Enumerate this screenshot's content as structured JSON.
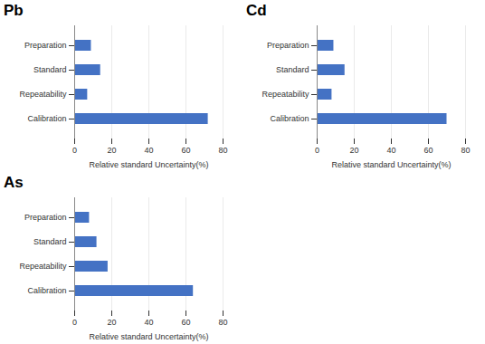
{
  "chart_data": [
    {
      "type": "bar",
      "title": "Pb",
      "orientation": "horizontal",
      "categories": [
        "Preparation",
        "Standard",
        "Repeatability",
        "Calibration"
      ],
      "values": [
        9,
        14,
        7,
        72
      ],
      "color": "#4472c4",
      "xlim": [
        0,
        80
      ],
      "xticks": [
        0,
        20,
        40,
        60,
        80
      ],
      "grid": true,
      "xlabel": "Relative standard Uncertainty(%)"
    },
    {
      "type": "bar",
      "title": "Cd",
      "orientation": "horizontal",
      "categories": [
        "Preparation",
        "Standard",
        "Repeatability",
        "Calibration"
      ],
      "values": [
        9,
        15,
        8,
        70
      ],
      "color": "#4472c4",
      "xlim": [
        0,
        80
      ],
      "xticks": [
        0,
        20,
        40,
        60,
        80
      ],
      "grid": true,
      "xlabel": "Relative standard Uncertainty(%)"
    },
    {
      "type": "bar",
      "title": "As",
      "orientation": "horizontal",
      "categories": [
        "Preparation",
        "Standard",
        "Repeatability",
        "Calibration"
      ],
      "values": [
        8,
        12,
        18,
        64
      ],
      "color": "#4472c4",
      "xlim": [
        0,
        80
      ],
      "xticks": [
        0,
        20,
        40,
        60,
        80
      ],
      "grid": true,
      "xlabel": "Relative standard Uncertainty(%)"
    }
  ]
}
